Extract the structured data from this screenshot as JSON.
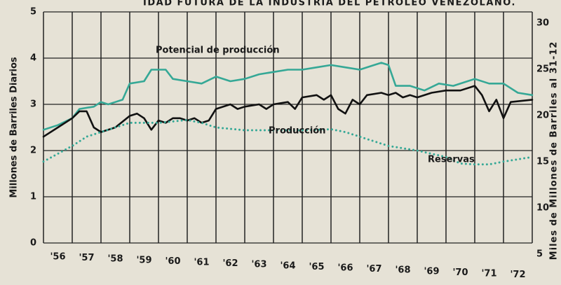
{
  "chart_data": {
    "type": "line",
    "title": "IDAD FUTURA DE LA INDUSTRIA DEL PETROLEO VENEZOLANO.",
    "y_label": "Millones de Barriles Diarios",
    "y2_label": "Miles de Millones de Barriles al 31-12",
    "xlim": [
      1956,
      1973
    ],
    "xticks": [
      {
        "value": 1956,
        "label": "'56"
      },
      {
        "value": 1957,
        "label": "'57"
      },
      {
        "value": 1958,
        "label": "'58"
      },
      {
        "value": 1959,
        "label": "'59"
      },
      {
        "value": 1960,
        "label": "'60"
      },
      {
        "value": 1961,
        "label": "'61"
      },
      {
        "value": 1962,
        "label": "'62"
      },
      {
        "value": 1963,
        "label": "'63"
      },
      {
        "value": 1964,
        "label": "'64"
      },
      {
        "value": 1965,
        "label": "'65"
      },
      {
        "value": 1966,
        "label": "'66"
      },
      {
        "value": 1967,
        "label": "'67"
      },
      {
        "value": 1968,
        "label": "'68"
      },
      {
        "value": 1969,
        "label": "'69"
      },
      {
        "value": 1970,
        "label": "'70"
      },
      {
        "value": 1971,
        "label": "'71"
      },
      {
        "value": 1972,
        "label": "'72"
      }
    ],
    "ylim": [
      0,
      5
    ],
    "yticks": [
      0,
      1,
      2,
      3,
      4,
      5
    ],
    "y2lim": [
      5,
      30
    ],
    "y2ticks": [
      5,
      10,
      15,
      20,
      25,
      30
    ],
    "grid": true,
    "series": [
      {
        "name": "Potencial de producción",
        "color": "#35a896",
        "style": "solid",
        "x": [
          1956,
          1956.5,
          1957,
          1957.25,
          1957.75,
          1958,
          1958.25,
          1958.5,
          1958.75,
          1959,
          1959.5,
          1959.75,
          1960.25,
          1960.5,
          1961,
          1961.5,
          1962,
          1962.5,
          1963,
          1963.5,
          1964,
          1964.5,
          1965,
          1965.5,
          1966,
          1966.5,
          1967,
          1967.5,
          1967.75,
          1968,
          1968.25,
          1968.75,
          1969.25,
          1969.75,
          1970.25,
          1970.75,
          1971,
          1971.5,
          1972,
          1972.5,
          1973
        ],
        "values": [
          2.45,
          2.55,
          2.7,
          2.9,
          2.95,
          3.05,
          3.0,
          3.05,
          3.1,
          3.45,
          3.5,
          3.75,
          3.75,
          3.55,
          3.5,
          3.45,
          3.6,
          3.5,
          3.55,
          3.65,
          3.7,
          3.75,
          3.75,
          3.8,
          3.85,
          3.8,
          3.75,
          3.85,
          3.9,
          3.85,
          3.4,
          3.4,
          3.3,
          3.45,
          3.4,
          3.5,
          3.55,
          3.45,
          3.45,
          3.25,
          3.2
        ]
      },
      {
        "name": "Producción",
        "color": "#111111",
        "style": "solid",
        "x": [
          1956,
          1956.5,
          1957,
          1957.25,
          1957.5,
          1957.75,
          1958,
          1958.5,
          1959,
          1959.25,
          1959.5,
          1959.75,
          1960,
          1960.25,
          1960.5,
          1960.75,
          1961,
          1961.25,
          1961.5,
          1961.75,
          1962,
          1962.5,
          1962.75,
          1963,
          1963.5,
          1963.75,
          1964,
          1964.5,
          1964.75,
          1965,
          1965.5,
          1965.75,
          1966,
          1966.25,
          1966.5,
          1966.75,
          1967,
          1967.25,
          1967.75,
          1968,
          1968.25,
          1968.5,
          1968.75,
          1969,
          1969.5,
          1970,
          1970.5,
          1971,
          1971.25,
          1971.5,
          1971.75,
          1972,
          1972.25,
          1973
        ],
        "values": [
          2.3,
          2.5,
          2.7,
          2.85,
          2.85,
          2.5,
          2.4,
          2.5,
          2.75,
          2.8,
          2.7,
          2.45,
          2.65,
          2.6,
          2.7,
          2.7,
          2.65,
          2.7,
          2.6,
          2.65,
          2.9,
          3.0,
          2.9,
          2.95,
          3.0,
          2.9,
          3.0,
          3.05,
          2.9,
          3.15,
          3.2,
          3.1,
          3.2,
          2.9,
          2.8,
          3.1,
          3.0,
          3.2,
          3.25,
          3.2,
          3.25,
          3.15,
          3.2,
          3.15,
          3.25,
          3.3,
          3.3,
          3.4,
          3.2,
          2.85,
          3.1,
          2.7,
          3.05,
          3.1
        ]
      },
      {
        "name": "Reservas",
        "color": "#35a896",
        "style": "dotted",
        "axis": "y2",
        "x": [
          1956,
          1957,
          1957.5,
          1958.5,
          1959,
          1960,
          1961,
          1961.5,
          1962,
          1963,
          1964,
          1965,
          1966,
          1966.5,
          1967,
          1968,
          1969,
          1970,
          1970.5,
          1971,
          1971.5,
          1972,
          1973
        ],
        "values": [
          13.8,
          15.5,
          16.5,
          17.5,
          18,
          18,
          18.3,
          18,
          17.5,
          17.2,
          17.2,
          17.2,
          17.3,
          17,
          16.5,
          15.5,
          15.0,
          14.3,
          13.6,
          13.5,
          13.5,
          13.8,
          14.3
        ]
      }
    ]
  }
}
